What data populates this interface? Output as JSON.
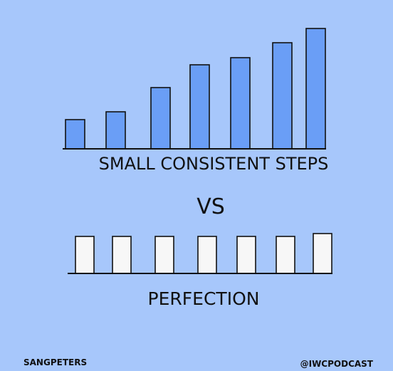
{
  "main": {
    "top_label": "SMALL CONSISTENT STEPS",
    "vs_label": "VS",
    "bottom_label": "PERFECTION"
  },
  "footer": {
    "left_credit": "SANGPETERS",
    "right_credit": "@IWCPODCAST"
  },
  "colors": {
    "background": "#a7c7fb",
    "growth_bar_fill": "#6a9ef6",
    "perfection_bar_fill": "#f7f7f7",
    "stroke": "#111111"
  },
  "graphics": {
    "growth_bars_levels": [
      0.24,
      0.31,
      0.51,
      0.7,
      0.76,
      0.88,
      1.0
    ],
    "perfection_bars_levels": [
      0.92,
      0.92,
      0.92,
      0.92,
      0.92,
      0.92,
      1.0
    ]
  }
}
